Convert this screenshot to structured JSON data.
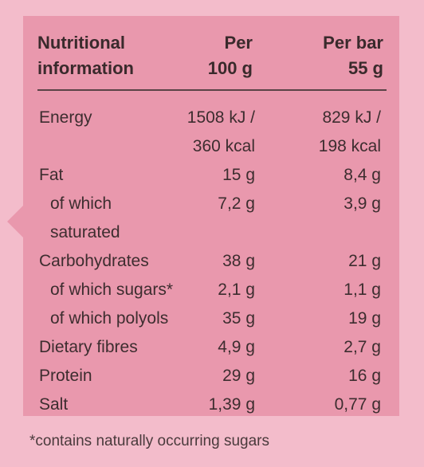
{
  "header": {
    "label_line1": "Nutritional",
    "label_line2": "information",
    "per100_line1": "Per",
    "per100_line2": "100 g",
    "perbar_line1": "Per bar",
    "perbar_line2": "55 g"
  },
  "rows": [
    {
      "label": "Energy",
      "per100": "1508 kJ /",
      "perbar": "829 kJ /"
    },
    {
      "label": "",
      "per100": "360 kcal",
      "perbar": "198 kcal"
    },
    {
      "label": "Fat",
      "per100": "15 g",
      "perbar": "8,4 g"
    },
    {
      "label": "of which",
      "per100": "7,2 g",
      "perbar": "3,9 g"
    },
    {
      "label": "saturated",
      "per100": "",
      "perbar": ""
    },
    {
      "label": "Carbohydrates",
      "per100": "38 g",
      "perbar": "21 g"
    },
    {
      "label": "of which sugars*",
      "per100": "2,1 g",
      "perbar": "1,1 g"
    },
    {
      "label": "of which polyols",
      "per100": "35 g",
      "perbar": "19 g"
    },
    {
      "label": "Dietary fibres",
      "per100": "4,9 g",
      "perbar": "2,7 g"
    },
    {
      "label": "Protein",
      "per100": "29 g",
      "perbar": "16 g"
    },
    {
      "label": "Salt",
      "per100": "1,39 g",
      "perbar": "0,77 g"
    }
  ],
  "footnote": "*contains naturally occurring sugars",
  "colors": {
    "background": "#f3bccb",
    "panel": "#e998ad",
    "text": "#3d2d2f"
  }
}
